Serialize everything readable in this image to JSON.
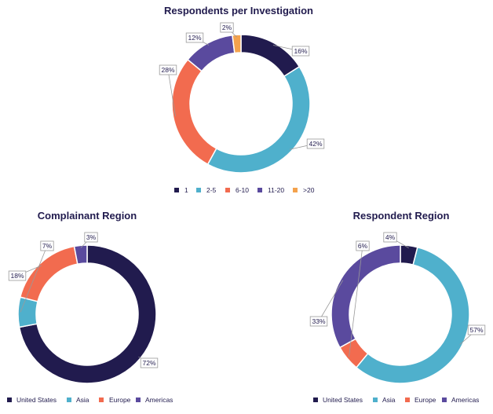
{
  "colors": {
    "navy": "#211b4e",
    "teal": "#4fb0cc",
    "coral": "#f26b4f",
    "purple": "#5a4a9e",
    "orange": "#f4a24c",
    "text": "#211b4e"
  },
  "chart_data": [
    {
      "type": "pie",
      "variant": "donut",
      "title": "Respondents per Investigation",
      "categories": [
        "1",
        "2-5",
        "6-10",
        "11-20",
        ">20"
      ],
      "values": [
        16,
        42,
        28,
        12,
        2
      ],
      "labels": [
        "16%",
        "42%",
        "28%",
        "12%",
        "2%"
      ],
      "colors": [
        "#211b4e",
        "#4fb0cc",
        "#f26b4f",
        "#5a4a9e",
        "#f4a24c"
      ],
      "legend_position": "bottom"
    },
    {
      "type": "pie",
      "variant": "donut",
      "title": "Complainant Region",
      "categories": [
        "United States",
        "Asia",
        "Europe",
        "Americas"
      ],
      "values": [
        72,
        7,
        18,
        3
      ],
      "labels": [
        "72%",
        "7%",
        "18%",
        "3%"
      ],
      "colors": [
        "#211b4e",
        "#4fb0cc",
        "#f26b4f",
        "#5a4a9e"
      ],
      "legend_position": "bottom"
    },
    {
      "type": "pie",
      "variant": "donut",
      "title": "Respondent Region",
      "categories": [
        "United States",
        "Asia",
        "Europe",
        "Americas"
      ],
      "values": [
        4,
        57,
        6,
        33
      ],
      "labels": [
        "4%",
        "57%",
        "6%",
        "33%"
      ],
      "colors": [
        "#211b4e",
        "#4fb0cc",
        "#f26b4f",
        "#5a4a9e"
      ],
      "legend_position": "bottom"
    }
  ]
}
